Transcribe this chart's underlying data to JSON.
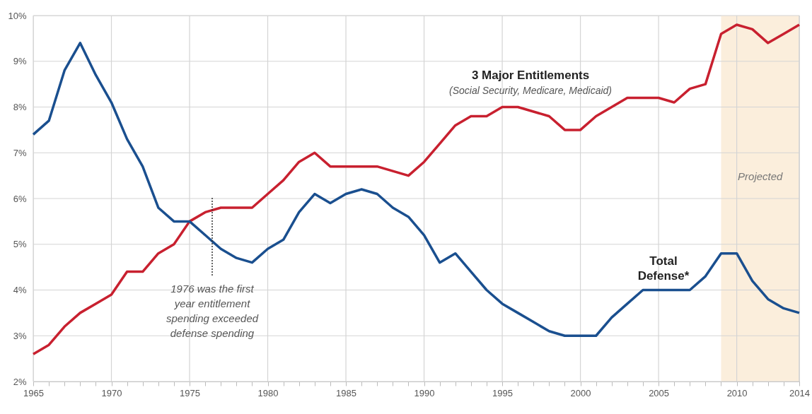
{
  "chart_data": {
    "type": "line",
    "x": [
      1965,
      1966,
      1967,
      1968,
      1969,
      1970,
      1971,
      1972,
      1973,
      1974,
      1975,
      1976,
      1977,
      1978,
      1979,
      1980,
      1981,
      1982,
      1983,
      1984,
      1985,
      1986,
      1987,
      1988,
      1989,
      1990,
      1991,
      1992,
      1993,
      1994,
      1995,
      1996,
      1997,
      1998,
      1999,
      2000,
      2001,
      2002,
      2003,
      2004,
      2005,
      2006,
      2007,
      2008,
      2009,
      2010,
      2011,
      2012,
      2013,
      2014
    ],
    "series": [
      {
        "name": "3 Major Entitlements",
        "color": "#c8202f",
        "values": [
          2.6,
          2.8,
          3.2,
          3.5,
          3.7,
          3.9,
          4.4,
          4.4,
          4.8,
          5.0,
          5.5,
          5.7,
          5.8,
          5.8,
          5.8,
          6.1,
          6.4,
          6.8,
          7.0,
          6.7,
          6.7,
          6.7,
          6.7,
          6.6,
          6.5,
          6.8,
          7.2,
          7.6,
          7.8,
          7.8,
          8.0,
          8.0,
          7.9,
          7.8,
          7.5,
          7.5,
          7.8,
          8.0,
          8.2,
          8.2,
          8.2,
          8.1,
          8.4,
          8.5,
          9.6,
          9.8,
          9.7,
          9.4,
          9.6,
          9.8
        ]
      },
      {
        "name": "Total Defense*",
        "color": "#1a4f8f",
        "values": [
          7.4,
          7.7,
          8.8,
          9.4,
          8.7,
          8.1,
          7.3,
          6.7,
          5.8,
          5.5,
          5.5,
          5.2,
          4.9,
          4.7,
          4.6,
          4.9,
          5.1,
          5.7,
          6.1,
          5.9,
          6.1,
          6.2,
          6.1,
          5.8,
          5.6,
          5.2,
          4.6,
          4.8,
          4.4,
          4.0,
          3.7,
          3.5,
          3.3,
          3.1,
          3.0,
          3.0,
          3.0,
          3.4,
          3.7,
          4.0,
          4.0,
          4.0,
          4.0,
          4.3,
          4.8,
          4.8,
          4.2,
          3.8,
          3.6,
          3.5
        ]
      }
    ],
    "xlim": [
      1965,
      2014
    ],
    "xticks": [
      1965,
      {
        "value": 1966,
        "label": null
      },
      {
        "value": 1967,
        "label": null
      },
      {
        "value": 1968,
        "label": null
      },
      {
        "value": 1969,
        "label": null
      },
      1970,
      {
        "value": 1971,
        "label": null
      },
      {
        "value": 1972,
        "label": null
      },
      {
        "value": 1973,
        "label": null
      },
      {
        "value": 1974,
        "label": null
      },
      1975,
      {
        "value": 1976,
        "label": null
      },
      {
        "value": 1977,
        "label": null
      },
      {
        "value": 1978,
        "label": null
      },
      {
        "value": 1979,
        "label": null
      },
      1980,
      {
        "value": 1981,
        "label": null
      },
      {
        "value": 1982,
        "label": null
      },
      {
        "value": 1983,
        "label": null
      },
      {
        "value": 1984,
        "label": null
      },
      1985,
      {
        "value": 1986,
        "label": null
      },
      {
        "value": 1987,
        "label": null
      },
      {
        "value": 1988,
        "label": null
      },
      {
        "value": 1989,
        "label": null
      },
      1990,
      {
        "value": 1991,
        "label": null
      },
      {
        "value": 1992,
        "label": null
      },
      {
        "value": 1993,
        "label": null
      },
      {
        "value": 1994,
        "label": null
      },
      1995,
      {
        "value": 1996,
        "label": null
      },
      {
        "value": 1997,
        "label": null
      },
      {
        "value": 1998,
        "label": null
      },
      {
        "value": 1999,
        "label": null
      },
      2000,
      {
        "value": 2001,
        "label": null
      },
      {
        "value": 2002,
        "label": null
      },
      {
        "value": 2003,
        "label": null
      },
      {
        "value": 2004,
        "label": null
      },
      2005,
      {
        "value": 2006,
        "label": null
      },
      {
        "value": 2007,
        "label": null
      },
      {
        "value": 2008,
        "label": null
      },
      {
        "value": 2009,
        "label": null
      },
      2010,
      {
        "value": 2011,
        "label": null
      },
      {
        "value": 2012,
        "label": null
      },
      {
        "value": 2013,
        "label": null
      },
      2014
    ],
    "ylim": [
      2,
      10
    ],
    "yticks": [
      {
        "value": 2,
        "label": "2%"
      },
      {
        "value": 3,
        "label": "3%"
      },
      {
        "value": 4,
        "label": "4%"
      },
      {
        "value": 5,
        "label": "5%"
      },
      {
        "value": 6,
        "label": "6%"
      },
      {
        "value": 7,
        "label": "7%"
      },
      {
        "value": 8,
        "label": "8%"
      },
      {
        "value": 9,
        "label": "9%"
      },
      {
        "value": 10,
        "label": "10%"
      }
    ],
    "bands": [
      {
        "axis": "x",
        "from": 2009,
        "to": 2014,
        "label": "Projected",
        "color": "#fbeedc"
      }
    ],
    "annotations": [
      "(Social Security, Medicare, Medicaid)",
      "1976 was the first year entitlement spending exceeded defense spending"
    ],
    "grid": true,
    "legend": false,
    "marker": "none",
    "line_style": "solid"
  }
}
